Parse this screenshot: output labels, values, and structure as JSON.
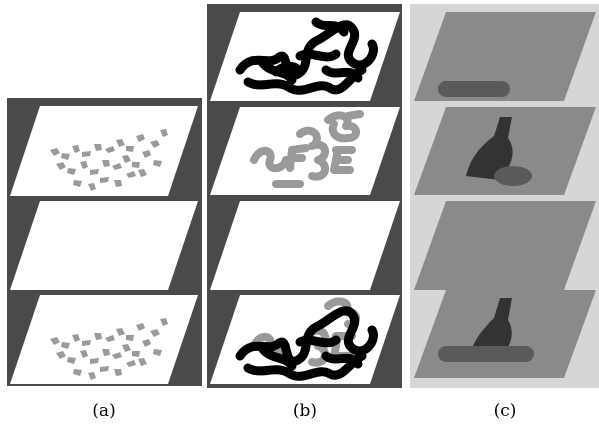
{
  "figure": {
    "panels": [
      {
        "id": "a",
        "caption": "(a)",
        "background": "#4a4a4a",
        "layers": [
          {
            "role": "input",
            "fill": "#ffffff",
            "content": "gray-fragments"
          },
          {
            "role": "empty",
            "fill": "#ffffff",
            "content": "none"
          },
          {
            "role": "output",
            "fill": "#ffffff",
            "content": "gray-fragments"
          }
        ]
      },
      {
        "id": "b",
        "caption": "(b)",
        "background": "#4a4a4a",
        "layers": [
          {
            "role": "black-scribble",
            "fill": "#ffffff",
            "content": "black-scribble"
          },
          {
            "role": "gray-letters",
            "fill": "#ffffff",
            "content": "gray-letters"
          },
          {
            "role": "empty",
            "fill": "#ffffff",
            "content": "none"
          },
          {
            "role": "composite",
            "fill": "#ffffff",
            "content": "black-scribble-with-gray"
          }
        ]
      },
      {
        "id": "c",
        "caption": "(c)",
        "background": "#d6d6d6",
        "layers": [
          {
            "role": "ellipse-object",
            "fill": "#8a8a8a",
            "content": "ellipse"
          },
          {
            "role": "bottle-object",
            "fill": "#8a8a8a",
            "content": "bottle-and-ellipse"
          },
          {
            "role": "empty",
            "fill": "#8a8a8a",
            "content": "none"
          },
          {
            "role": "composite",
            "fill": "#8a8a8a",
            "content": "bottle-and-ellipse-composite"
          }
        ]
      }
    ],
    "colors": {
      "dark_background": "#4a4a4a",
      "light_background": "#d6d6d6",
      "white_layer": "#ffffff",
      "gray_layer": "#8a8a8a",
      "fragment_gray": "#9a9a9a",
      "ink_black": "#000000",
      "object_dark": "#333333",
      "object_mid": "#5a5a5a"
    }
  }
}
